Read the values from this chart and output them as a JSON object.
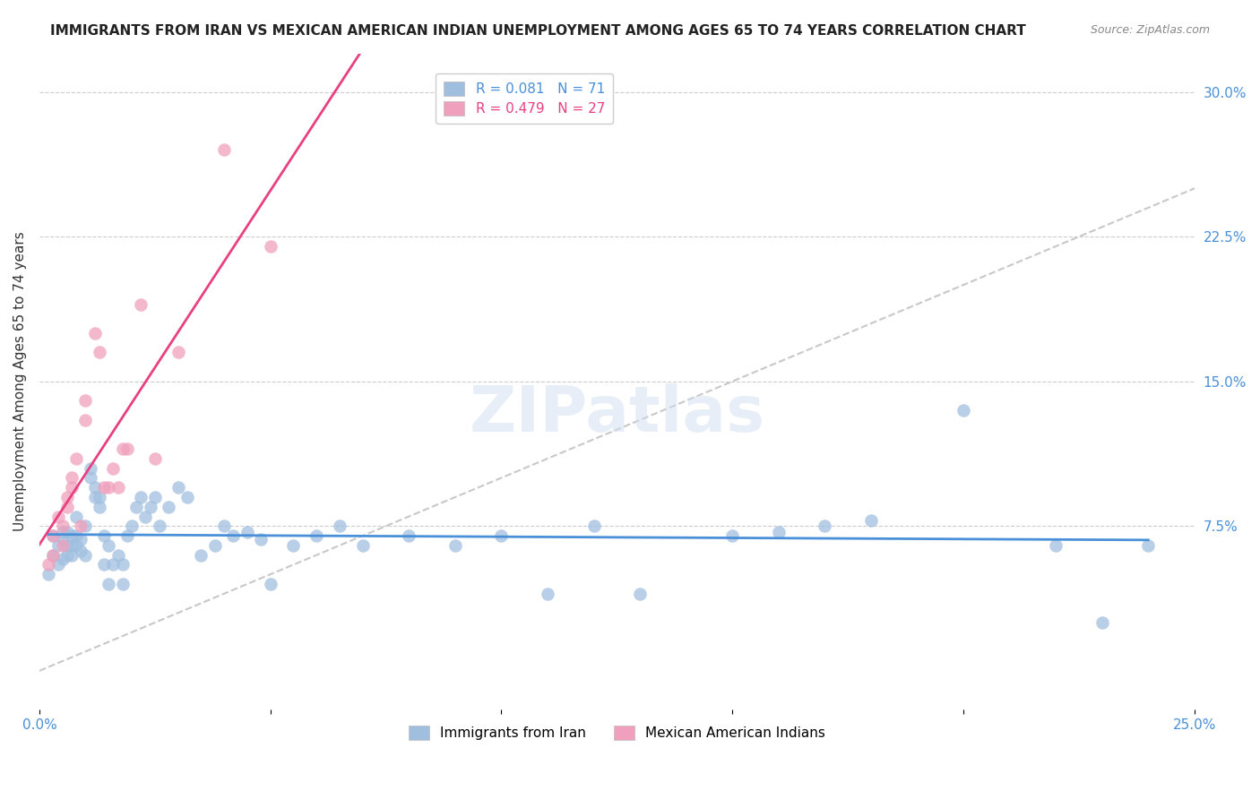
{
  "title": "IMMIGRANTS FROM IRAN VS MEXICAN AMERICAN INDIAN UNEMPLOYMENT AMONG AGES 65 TO 74 YEARS CORRELATION CHART",
  "source": "Source: ZipAtlas.com",
  "ylabel": "Unemployment Among Ages 65 to 74 years",
  "xlim": [
    0.0,
    0.25
  ],
  "ylim": [
    -0.02,
    0.32
  ],
  "y_ticks_right": [
    0.075,
    0.15,
    0.225,
    0.3
  ],
  "y_tick_labels_right": [
    "7.5%",
    "15.0%",
    "22.5%",
    "30.0%"
  ],
  "watermark": "ZIPatlas",
  "series1_color": "#a0bfdf",
  "series2_color": "#f0a0bc",
  "trend1_color": "#4a90d9",
  "trend2_color": "#e84080",
  "diagonal_color": "#c8c8c8",
  "legend_top_labels": [
    "R = 0.081   N = 71",
    "R = 0.479   N = 27"
  ],
  "legend_top_colors": [
    "#4a90d9",
    "#e84080"
  ],
  "legend_bottom_labels": [
    "Immigrants from Iran",
    "Mexican American Indians"
  ],
  "series1_x": [
    0.002,
    0.003,
    0.003,
    0.004,
    0.004,
    0.005,
    0.005,
    0.005,
    0.006,
    0.006,
    0.006,
    0.007,
    0.007,
    0.007,
    0.008,
    0.008,
    0.008,
    0.009,
    0.009,
    0.01,
    0.01,
    0.011,
    0.011,
    0.012,
    0.012,
    0.013,
    0.013,
    0.014,
    0.014,
    0.015,
    0.015,
    0.016,
    0.017,
    0.018,
    0.018,
    0.019,
    0.02,
    0.021,
    0.022,
    0.023,
    0.024,
    0.025,
    0.026,
    0.028,
    0.03,
    0.032,
    0.035,
    0.038,
    0.04,
    0.042,
    0.045,
    0.048,
    0.05,
    0.055,
    0.06,
    0.065,
    0.07,
    0.08,
    0.09,
    0.1,
    0.11,
    0.12,
    0.13,
    0.15,
    0.16,
    0.17,
    0.18,
    0.2,
    0.22,
    0.23,
    0.24
  ],
  "series1_y": [
    0.05,
    0.06,
    0.07,
    0.055,
    0.065,
    0.058,
    0.068,
    0.072,
    0.06,
    0.065,
    0.072,
    0.06,
    0.065,
    0.07,
    0.065,
    0.07,
    0.08,
    0.062,
    0.068,
    0.06,
    0.075,
    0.1,
    0.105,
    0.09,
    0.095,
    0.085,
    0.09,
    0.07,
    0.055,
    0.065,
    0.045,
    0.055,
    0.06,
    0.055,
    0.045,
    0.07,
    0.075,
    0.085,
    0.09,
    0.08,
    0.085,
    0.09,
    0.075,
    0.085,
    0.095,
    0.09,
    0.06,
    0.065,
    0.075,
    0.07,
    0.072,
    0.068,
    0.045,
    0.065,
    0.07,
    0.075,
    0.065,
    0.07,
    0.065,
    0.07,
    0.04,
    0.075,
    0.04,
    0.07,
    0.072,
    0.075,
    0.078,
    0.135,
    0.065,
    0.025,
    0.065
  ],
  "series2_x": [
    0.002,
    0.003,
    0.003,
    0.004,
    0.005,
    0.005,
    0.006,
    0.006,
    0.007,
    0.007,
    0.008,
    0.009,
    0.01,
    0.01,
    0.012,
    0.013,
    0.014,
    0.015,
    0.016,
    0.017,
    0.018,
    0.019,
    0.022,
    0.025,
    0.03,
    0.04,
    0.05
  ],
  "series2_y": [
    0.055,
    0.06,
    0.07,
    0.08,
    0.065,
    0.075,
    0.085,
    0.09,
    0.095,
    0.1,
    0.11,
    0.075,
    0.13,
    0.14,
    0.175,
    0.165,
    0.095,
    0.095,
    0.105,
    0.095,
    0.115,
    0.115,
    0.19,
    0.11,
    0.165,
    0.27,
    0.22
  ]
}
